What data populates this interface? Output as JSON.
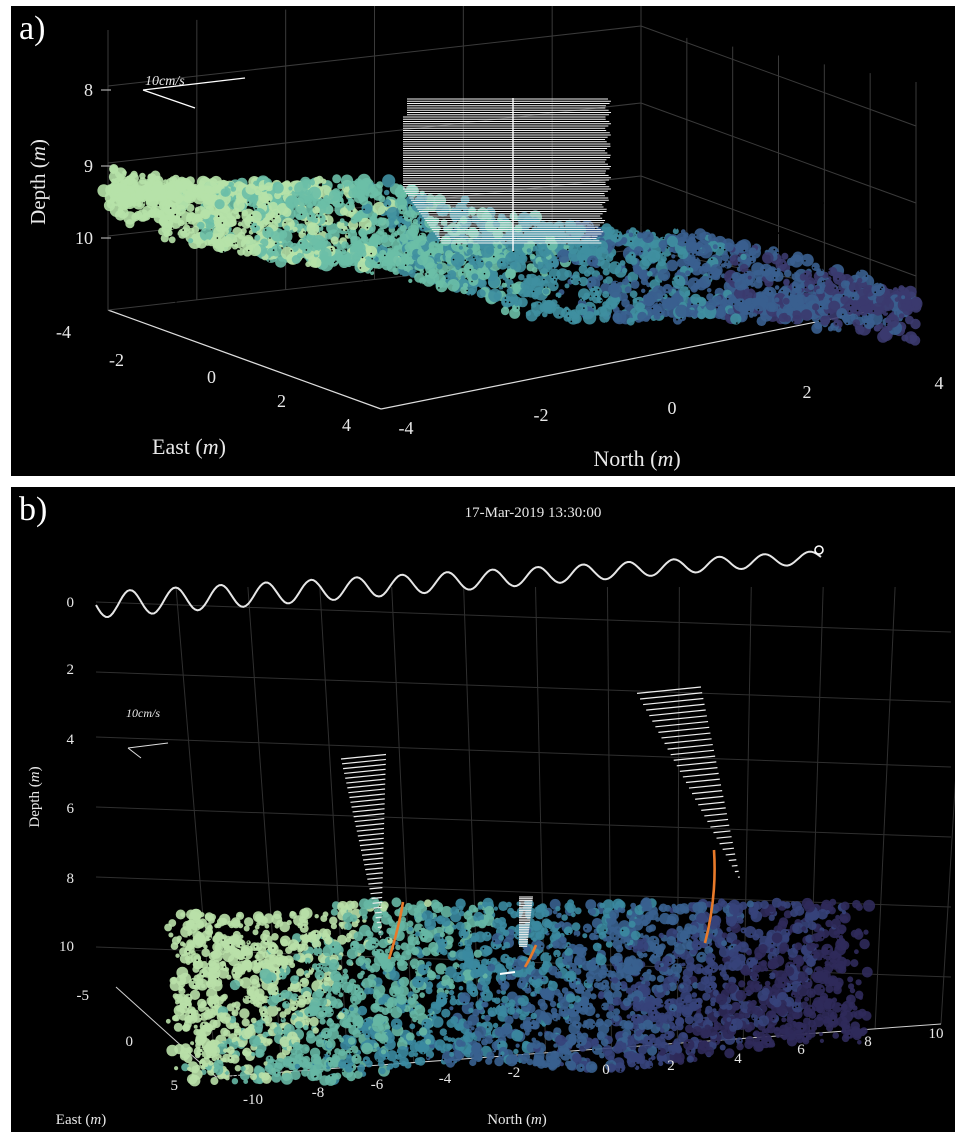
{
  "panels": [
    {
      "label": "a)"
    },
    {
      "label": "b)",
      "timestamp": "17-Mar-2019 13:30:00"
    }
  ],
  "chart_data": [
    {
      "type": "scatter",
      "subtype": "3d-point-cloud-with-velocity-profile",
      "xlabel": "North (m)",
      "ylabel": "East (m)",
      "zlabel": "Depth (m)",
      "xticks": [
        "-4",
        "-2",
        "0",
        "2",
        "4"
      ],
      "yticks": [
        "-4",
        "-2",
        "0",
        "2",
        "4"
      ],
      "zticks": [
        "8",
        "9",
        "10"
      ],
      "scale_label": "10cm/s",
      "colormap": [
        "#3b3a6e",
        "#3a5f8f",
        "#3f8fa0",
        "#6cbfa7",
        "#b6e2a8"
      ],
      "profile_color": "#ffffff"
    },
    {
      "type": "scatter",
      "subtype": "3d-point-cloud-with-velocity-profiles",
      "title": "17-Mar-2019 13:30:00",
      "xlabel": "North (m)",
      "ylabel": "East (m)",
      "zlabel": "Depth (m)",
      "xticks": [
        "-10",
        "-8",
        "-6",
        "-4",
        "-2",
        "0",
        "2",
        "4",
        "6",
        "8",
        "10"
      ],
      "yticks": [
        "-5",
        "0",
        "5"
      ],
      "zticks": [
        "0",
        "2",
        "4",
        "6",
        "8",
        "10"
      ],
      "scale_label": "10cm/s",
      "profile_color": "#ffffff",
      "highlight_color": "#e87a2a",
      "surface_wave_color": "#e6e6e6"
    }
  ]
}
